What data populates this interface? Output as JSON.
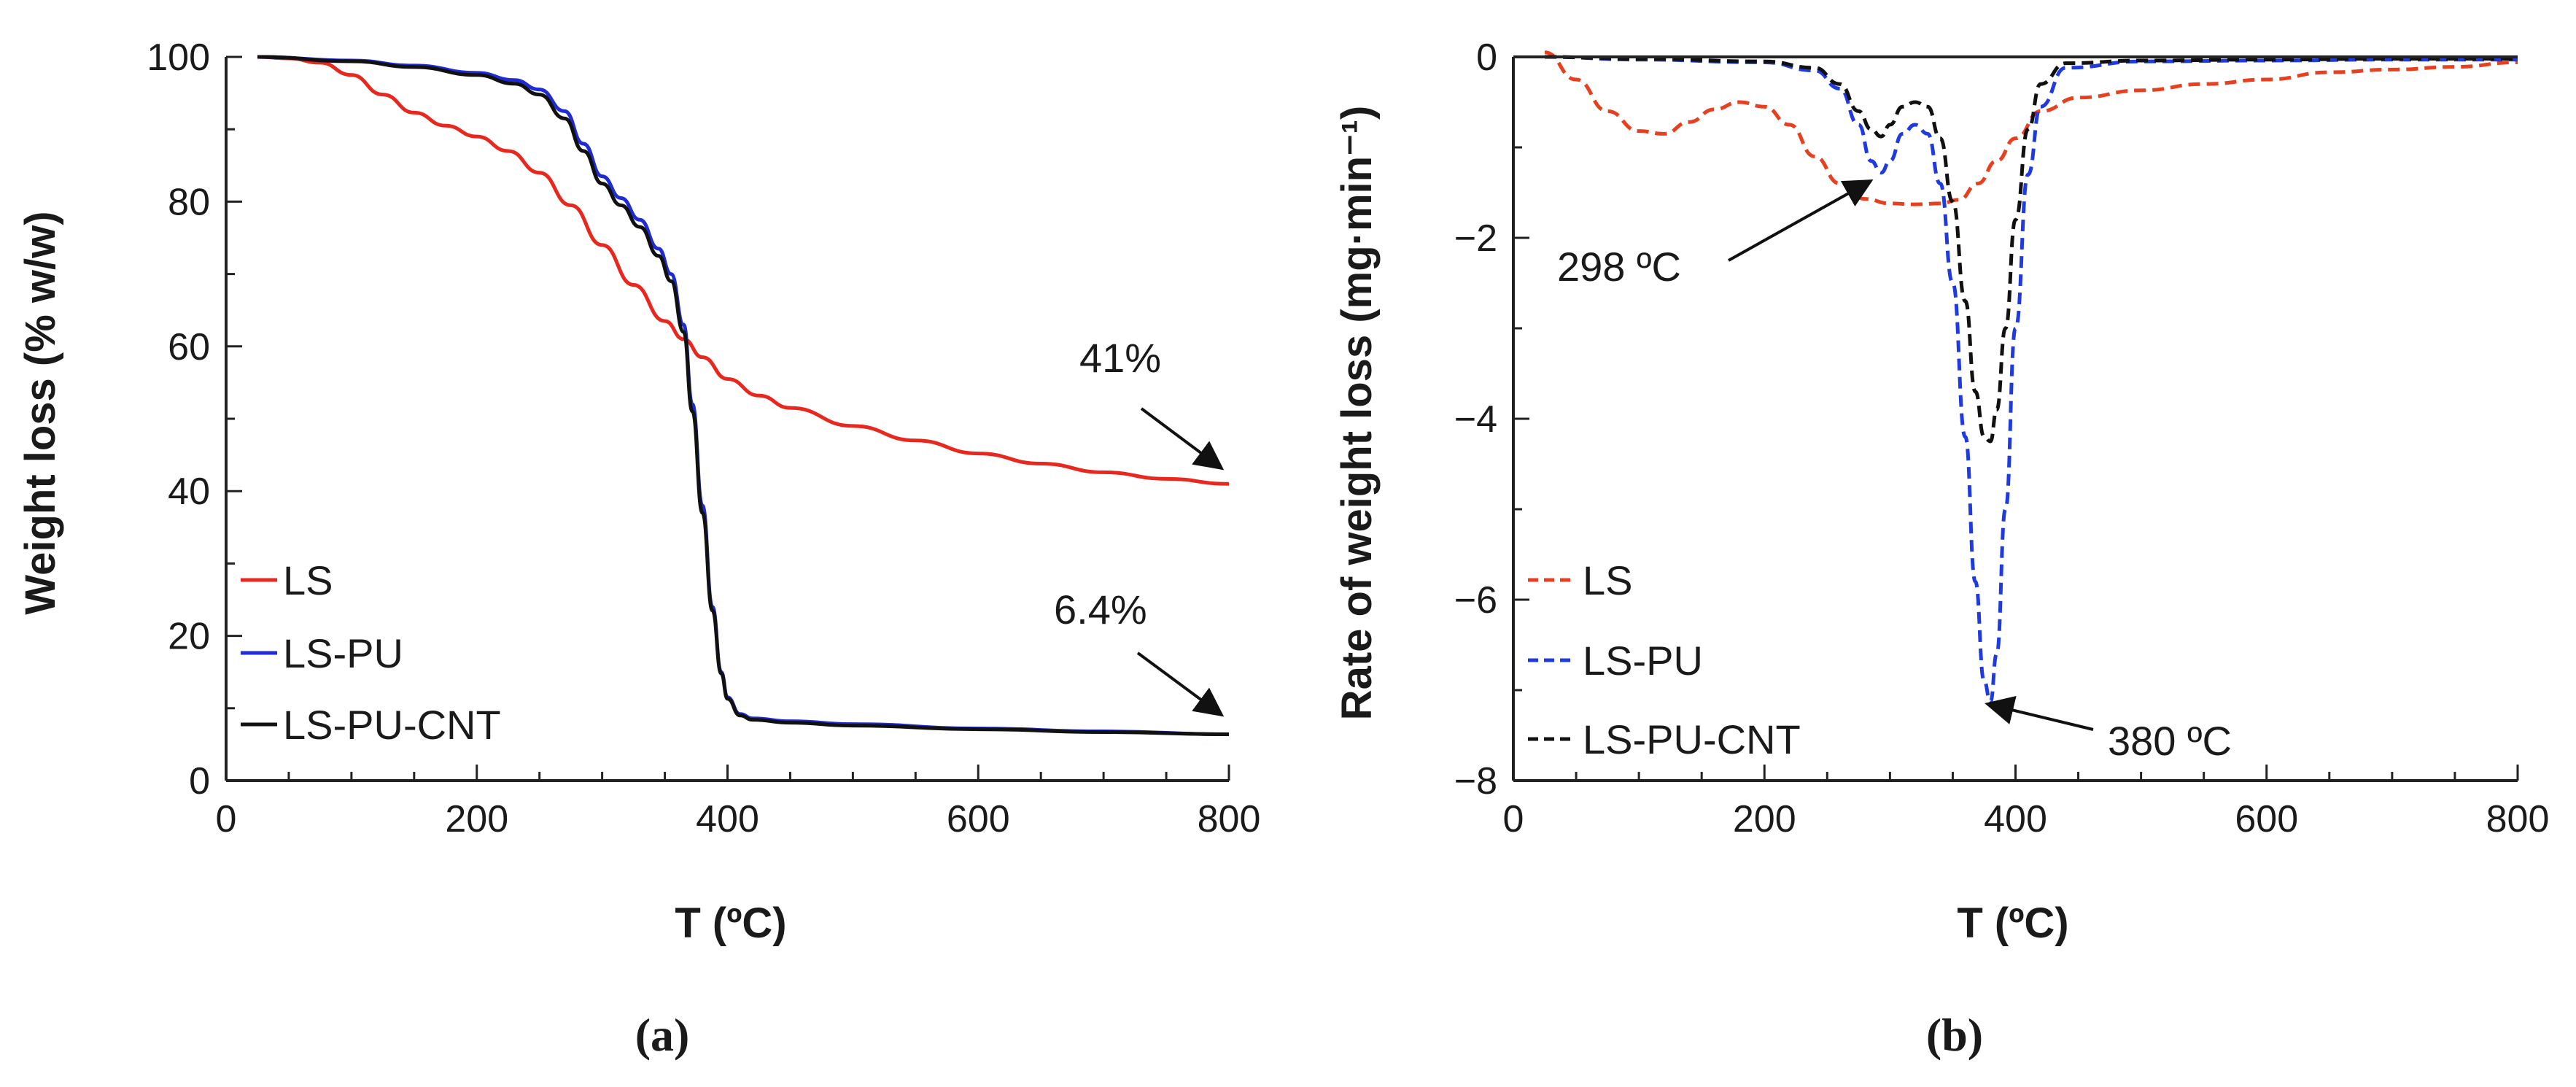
{
  "chart_data": [
    {
      "panel": "(a)",
      "type": "line",
      "xlabel": "T (ºC)",
      "ylabel": "Weight loss (% w/w)",
      "xlim": [
        0,
        800
      ],
      "ylim": [
        0,
        100
      ],
      "xticks": [
        0,
        200,
        400,
        600,
        800
      ],
      "yticks": [
        0,
        20,
        40,
        60,
        80,
        100
      ],
      "legend_position": "bottom-left",
      "series": [
        {
          "name": "LS",
          "color": "#e8281e",
          "dash": "solid",
          "x": [
            25,
            50,
            75,
            100,
            125,
            150,
            175,
            200,
            225,
            250,
            275,
            300,
            325,
            350,
            365,
            380,
            400,
            425,
            450,
            500,
            550,
            600,
            650,
            700,
            750,
            800
          ],
          "y": [
            100,
            99.8,
            99.2,
            97.5,
            94.8,
            92.3,
            90.5,
            89,
            87,
            84,
            79.5,
            74,
            68.5,
            63.5,
            61,
            58.5,
            55.5,
            53.2,
            51.5,
            49,
            47,
            45.2,
            43.8,
            42.6,
            41.7,
            41
          ]
        },
        {
          "name": "LS-PU",
          "color": "#1f2bd4",
          "dash": "solid",
          "x": [
            25,
            100,
            150,
            200,
            230,
            250,
            270,
            285,
            300,
            315,
            330,
            345,
            355,
            365,
            372,
            380,
            388,
            395,
            400,
            410,
            420,
            450,
            500,
            600,
            700,
            800
          ],
          "y": [
            100,
            99.5,
            98.8,
            97.8,
            96.8,
            95.5,
            92.5,
            88,
            83.5,
            80.5,
            77.5,
            73.5,
            70,
            63,
            52,
            38,
            24,
            15,
            11.5,
            9.2,
            8.6,
            8.2,
            7.8,
            7.2,
            6.8,
            6.4
          ]
        },
        {
          "name": "LS-PU-CNT",
          "color": "#111111",
          "dash": "solid",
          "x": [
            25,
            100,
            150,
            200,
            230,
            250,
            270,
            285,
            300,
            315,
            330,
            345,
            355,
            365,
            372,
            380,
            388,
            395,
            400,
            410,
            420,
            450,
            500,
            600,
            700,
            800
          ],
          "y": [
            100,
            99.4,
            98.6,
            97.5,
            96.3,
            94.8,
            91.5,
            87,
            82.5,
            79.5,
            76.5,
            72.5,
            69,
            62,
            51,
            37,
            23.5,
            14.8,
            11.3,
            9,
            8.4,
            8,
            7.6,
            7.1,
            6.7,
            6.4
          ]
        }
      ],
      "annotations": [
        {
          "text": "41%",
          "x": 797,
          "y": 41.5
        },
        {
          "text": "6.4%",
          "x": 797,
          "y": 7
        }
      ]
    },
    {
      "panel": "(b)",
      "type": "line",
      "xlabel": "T (ºC)",
      "ylabel": "Rate of weight loss (mg·min⁻¹)",
      "xlim": [
        0,
        800
      ],
      "ylim": [
        -8,
        0
      ],
      "xticks": [
        0,
        200,
        400,
        600,
        800
      ],
      "yticks": [
        0,
        -2,
        -4,
        -6,
        -8
      ],
      "legend_position": "bottom-left",
      "series": [
        {
          "name": "LS",
          "color": "#e8401e",
          "dash": "dashed",
          "x": [
            25,
            50,
            75,
            100,
            120,
            140,
            160,
            180,
            200,
            220,
            240,
            260,
            280,
            300,
            320,
            340,
            355,
            370,
            385,
            400,
            420,
            450,
            500,
            550,
            600,
            650,
            700,
            750,
            800
          ],
          "y": [
            0.05,
            -0.25,
            -0.6,
            -0.82,
            -0.85,
            -0.72,
            -0.58,
            -0.5,
            -0.55,
            -0.75,
            -1.1,
            -1.4,
            -1.57,
            -1.62,
            -1.63,
            -1.62,
            -1.58,
            -1.4,
            -1.15,
            -0.9,
            -0.6,
            -0.45,
            -0.37,
            -0.3,
            -0.25,
            -0.17,
            -0.14,
            -0.11,
            -0.06
          ]
        },
        {
          "name": "LS-PU",
          "color": "#1f3be0",
          "dash": "dashed",
          "x": [
            25,
            100,
            200,
            240,
            260,
            275,
            285,
            293,
            300,
            310,
            320,
            330,
            340,
            350,
            360,
            368,
            375,
            380,
            385,
            392,
            400,
            410,
            420,
            440,
            500,
            600,
            700,
            800
          ],
          "y": [
            0,
            -0.03,
            -0.06,
            -0.15,
            -0.35,
            -0.75,
            -1.15,
            -1.28,
            -1.15,
            -0.85,
            -0.75,
            -0.85,
            -1.4,
            -2.5,
            -4.2,
            -5.8,
            -6.9,
            -7.13,
            -6.6,
            -5,
            -3,
            -1.3,
            -0.55,
            -0.12,
            -0.05,
            -0.04,
            -0.03,
            -0.03
          ]
        },
        {
          "name": "LS-PU-CNT",
          "color": "#111111",
          "dash": "dashed",
          "x": [
            25,
            100,
            200,
            240,
            260,
            275,
            285,
            293,
            300,
            310,
            320,
            330,
            340,
            350,
            360,
            368,
            375,
            380,
            385,
            392,
            400,
            410,
            420,
            440,
            500,
            600,
            700,
            800
          ],
          "y": [
            0,
            -0.02,
            -0.05,
            -0.12,
            -0.3,
            -0.6,
            -0.8,
            -0.88,
            -0.75,
            -0.55,
            -0.5,
            -0.55,
            -0.9,
            -1.6,
            -2.7,
            -3.7,
            -4.2,
            -4.25,
            -3.9,
            -3,
            -1.8,
            -0.8,
            -0.3,
            -0.07,
            -0.04,
            -0.03,
            -0.02,
            -0.02
          ]
        }
      ],
      "annotations": [
        {
          "text": "298 ºC",
          "x": 298,
          "y": -1.25
        },
        {
          "text": "380 ºC",
          "x": 380,
          "y": -7.13
        }
      ]
    }
  ],
  "labels": {
    "a": {
      "ylabel": "Weight loss (% w/w)",
      "xlabel": "T (ºC)",
      "caption": "(a)",
      "legend": [
        "LS",
        "LS-PU",
        "LS-PU-CNT"
      ],
      "ann1": "41%",
      "ann2": "6.4%"
    },
    "b": {
      "ylabel": "Rate of weight loss (mg·min⁻¹)",
      "xlabel": "T (ºC)",
      "caption": "(b)",
      "legend": [
        "LS",
        "LS-PU",
        "LS-PU-CNT"
      ],
      "ann1": "298 ºC",
      "ann2": "380 ºC"
    }
  }
}
